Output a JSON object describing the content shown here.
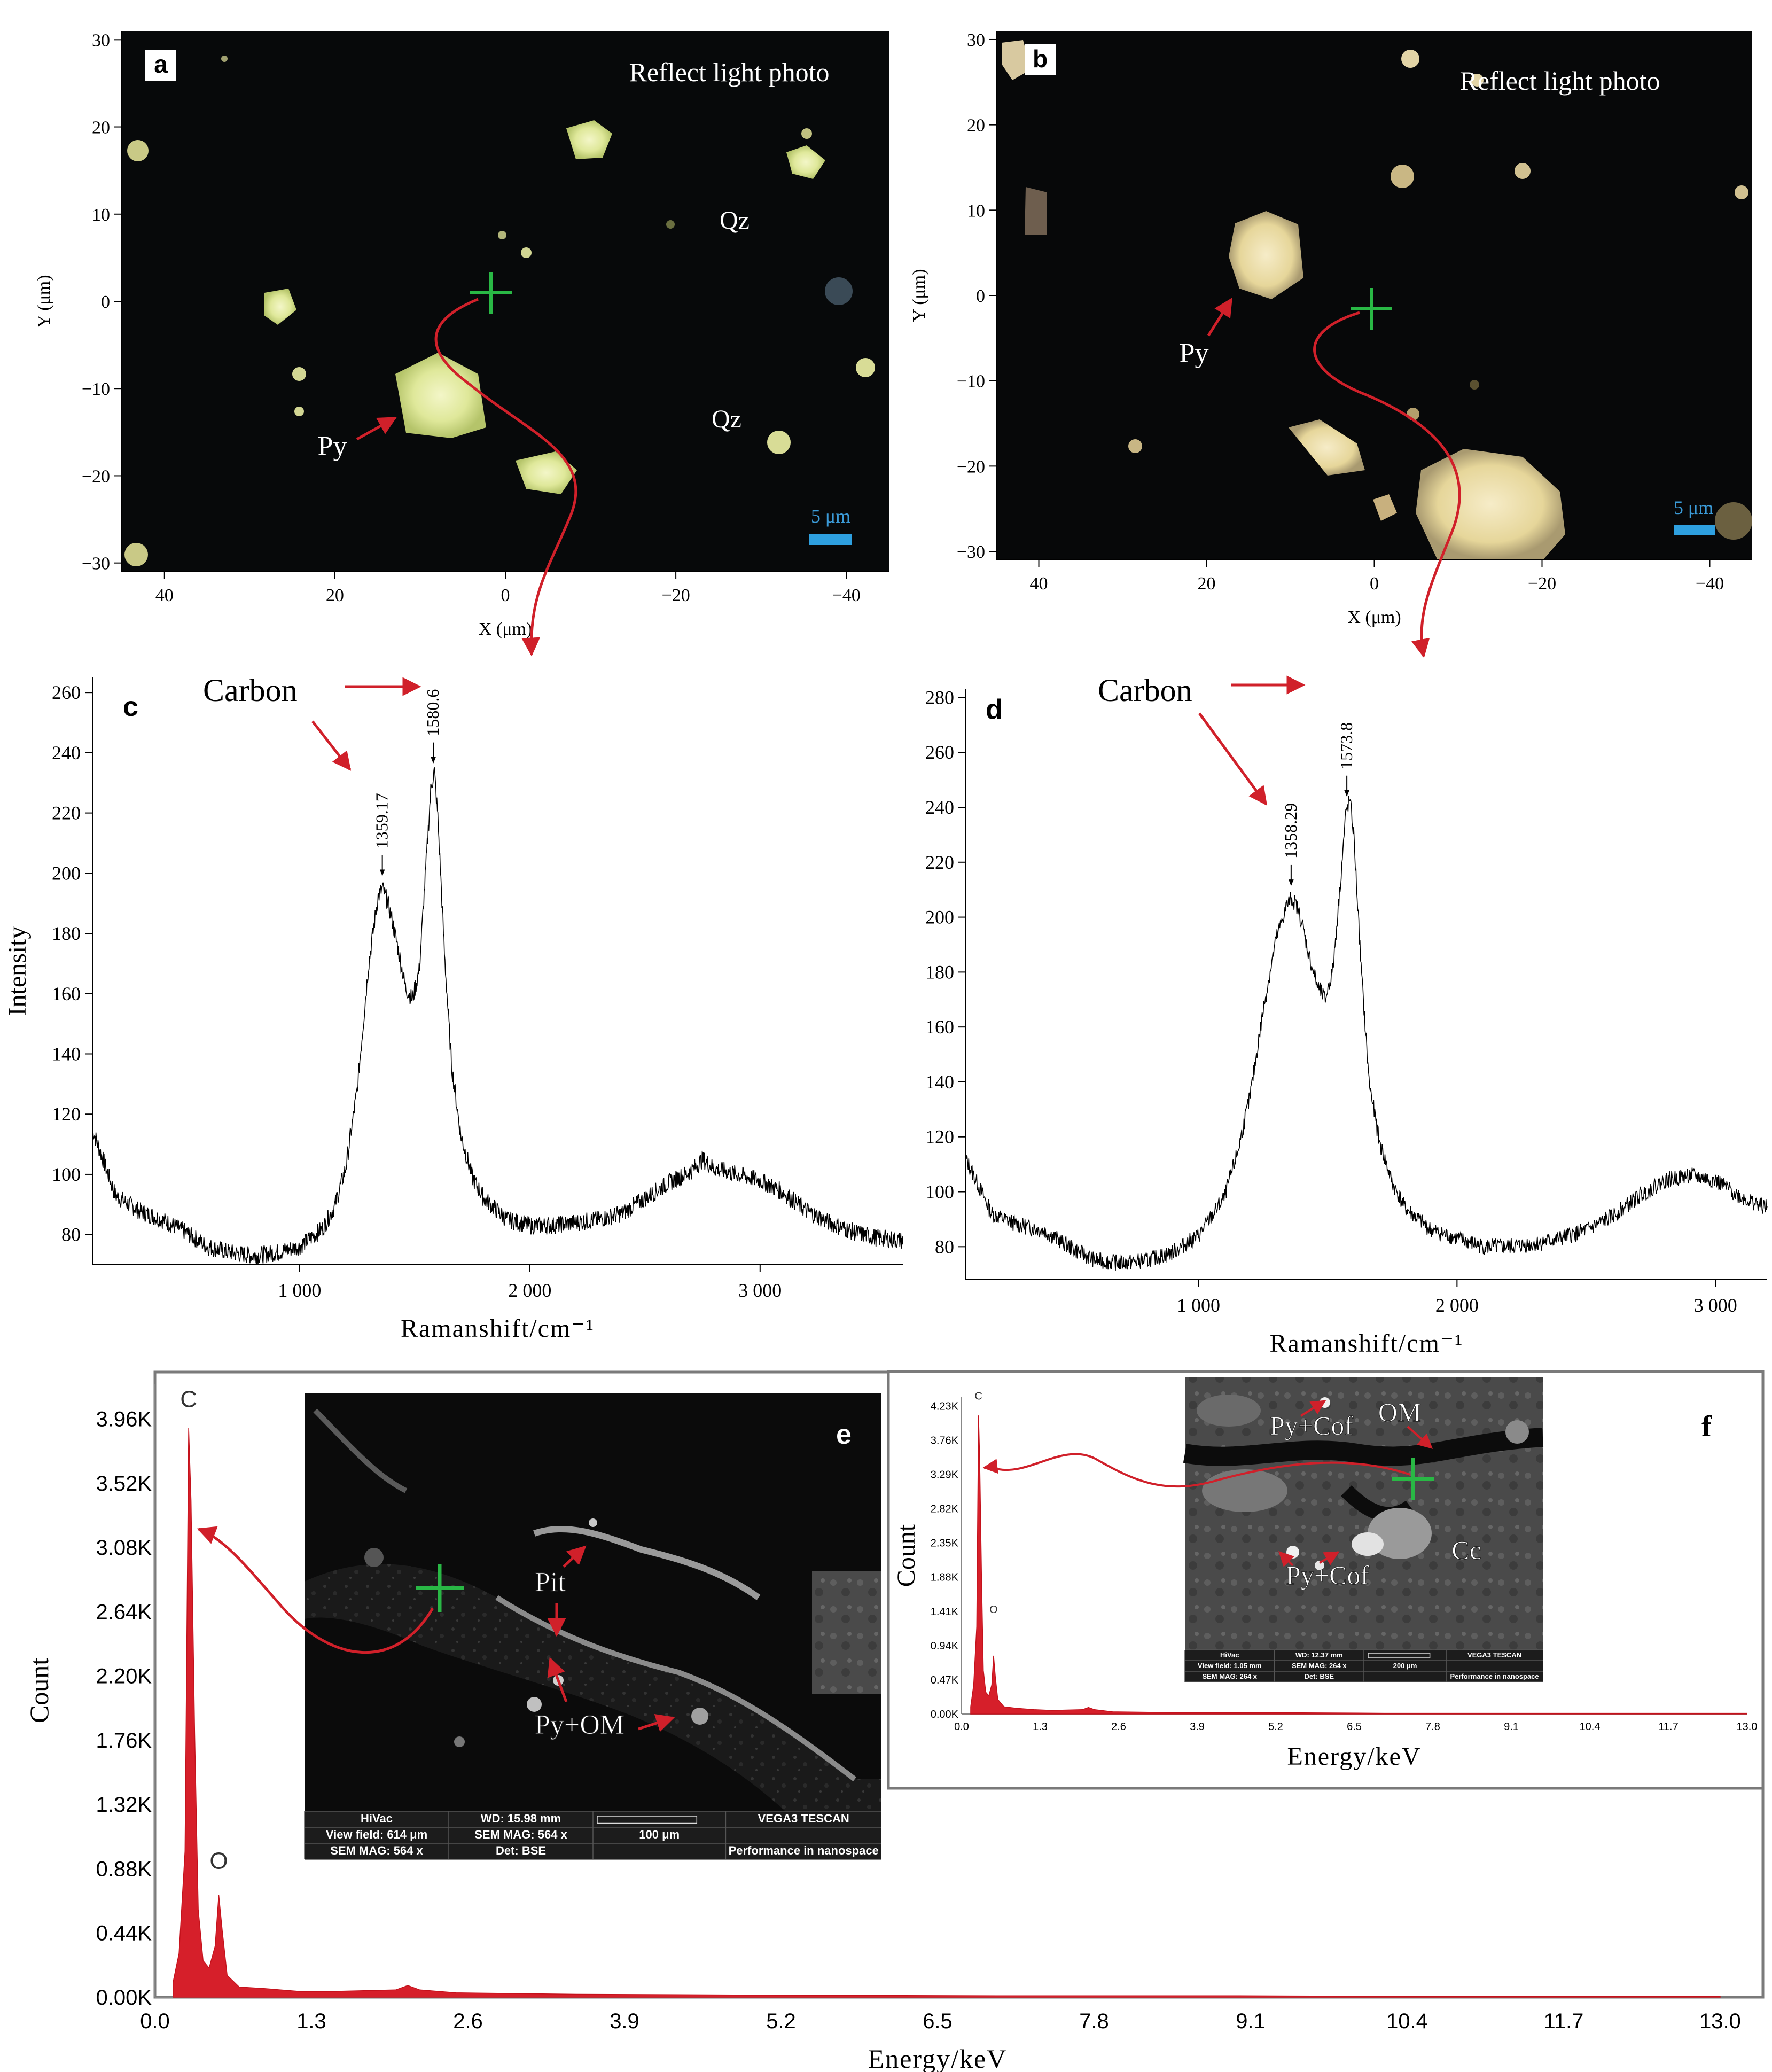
{
  "panels": {
    "a": {
      "letter": "a",
      "caption": "Reflect light photo",
      "labels": {
        "qz1": "Qz",
        "qz2": "Qz",
        "py": "Py"
      },
      "scale_bar": "5 μm",
      "xlabel": "X (μm)",
      "ylabel": "Y (μm)",
      "xticks": [
        40,
        20,
        0,
        -20,
        -40
      ],
      "yticks": [
        30,
        20,
        10,
        0,
        -10,
        -20,
        -30
      ],
      "xlim": [
        45,
        -45
      ],
      "ylim": [
        -31,
        31
      ]
    },
    "b": {
      "letter": "b",
      "caption": "Reflect light photo",
      "labels": {
        "py": "Py"
      },
      "scale_bar": "5 μm",
      "xlabel": "X (μm)",
      "ylabel": "Y (μm)",
      "xticks": [
        40,
        20,
        0,
        -20,
        -40
      ],
      "yticks": [
        30,
        20,
        10,
        0,
        -10,
        -20,
        -30
      ],
      "xlim": [
        45,
        -45
      ],
      "ylim": [
        -31,
        31
      ]
    },
    "e": {
      "letter": "e",
      "labels": {
        "pit": "Pit",
        "pyom": "Py+OM"
      },
      "sem_bar": {
        "r1": [
          "HiVac",
          "WD: 15.98 mm",
          "",
          "VEGA3 TESCAN"
        ],
        "r2": [
          "View field: 614 μm",
          "SEM MAG: 564 x",
          "100 μm",
          ""
        ],
        "r3": [
          "SEM MAG: 564 x",
          "Det: BSE",
          "",
          "Performance in nanospace"
        ]
      }
    },
    "f": {
      "letter": "f",
      "labels": {
        "pycof1": "Py+Cof",
        "om": "OM",
        "pycof2": "Py+Cof",
        "cc": "Cc"
      },
      "sem_bar": {
        "r1": [
          "HiVac",
          "WD: 12.37 mm",
          "",
          "VEGA3 TESCAN"
        ],
        "r2": [
          "View field: 1.05 mm",
          "SEM MAG: 264 x",
          "200 μm",
          ""
        ],
        "r3": [
          "SEM MAG: 264 x",
          "Det: BSE",
          "",
          "Performance in nanospace"
        ]
      }
    }
  },
  "chart_data": [
    {
      "id": "c",
      "type": "line",
      "letter": "c",
      "annotation": "Carbon",
      "xlabel": "Ramanshift/cm⁻¹",
      "ylabel": "Intensity",
      "xlim": [
        100,
        3620
      ],
      "ylim": [
        70,
        265
      ],
      "xticks": [
        1000,
        2000,
        3000
      ],
      "xtick_labels": [
        "1 000",
        "2 000",
        "3 000"
      ],
      "yticks": [
        80,
        100,
        120,
        140,
        160,
        180,
        200,
        220,
        240,
        260
      ],
      "peaks": [
        {
          "x": 1359.17,
          "label": "1359.17"
        },
        {
          "x": 1580.6,
          "label": "1580.6"
        }
      ],
      "x": [
        100,
        200,
        300,
        400,
        500,
        600,
        700,
        800,
        900,
        1000,
        1100,
        1150,
        1200,
        1250,
        1300,
        1340,
        1360,
        1380,
        1400,
        1430,
        1460,
        1490,
        1520,
        1550,
        1570,
        1585,
        1600,
        1630,
        1660,
        1700,
        1750,
        1800,
        1900,
        2000,
        2100,
        2200,
        2300,
        2400,
        2500,
        2600,
        2700,
        2750,
        2800,
        2900,
        3000,
        3100,
        3200,
        3300,
        3400,
        3500,
        3620
      ],
      "values": [
        115,
        93,
        88,
        85,
        81,
        76,
        74,
        73,
        74,
        76,
        82,
        89,
        102,
        128,
        170,
        192,
        195,
        191,
        185,
        174,
        162,
        158,
        168,
        204,
        228,
        234,
        219,
        172,
        136,
        113,
        99,
        92,
        85,
        83,
        83,
        84,
        85,
        87,
        92,
        97,
        101,
        105,
        102,
        100,
        98,
        94,
        88,
        84,
        81,
        79,
        78
      ]
    },
    {
      "id": "d",
      "type": "line",
      "letter": "d",
      "annotation": "Carbon",
      "xlabel": "Ramanshift/cm⁻¹",
      "ylabel": "",
      "xlim": [
        100,
        3200
      ],
      "ylim": [
        68,
        283
      ],
      "xticks": [
        1000,
        2000,
        3000
      ],
      "xtick_labels": [
        "1 000",
        "2 000",
        "3 000"
      ],
      "yticks": [
        80,
        100,
        120,
        140,
        160,
        180,
        200,
        220,
        240,
        260,
        280
      ],
      "peaks": [
        {
          "x": 1358.29,
          "label": "1358.29"
        },
        {
          "x": 1573.8,
          "label": "1573.8"
        }
      ],
      "x": [
        100,
        200,
        300,
        400,
        500,
        600,
        700,
        800,
        900,
        1000,
        1100,
        1150,
        1200,
        1250,
        1300,
        1340,
        1360,
        1380,
        1400,
        1430,
        1460,
        1490,
        1520,
        1550,
        1570,
        1585,
        1600,
        1630,
        1660,
        1700,
        1750,
        1800,
        1900,
        2000,
        2100,
        2200,
        2300,
        2400,
        2500,
        2600,
        2700,
        2800,
        2900,
        3000,
        3100,
        3200
      ],
      "values": [
        112,
        92,
        88,
        86,
        80,
        75,
        74,
        75,
        78,
        84,
        98,
        114,
        135,
        166,
        192,
        204,
        207,
        204,
        198,
        185,
        175,
        170,
        181,
        214,
        238,
        243,
        231,
        180,
        140,
        118,
        103,
        94,
        86,
        83,
        80,
        80,
        81,
        83,
        86,
        91,
        98,
        104,
        106,
        104,
        98,
        94
      ]
    },
    {
      "id": "e",
      "type": "bar",
      "xlabel": "Energy/keV",
      "ylabel": "Count",
      "xlim": [
        0,
        13.0
      ],
      "ylim": [
        0,
        4.2
      ],
      "xticks": [
        "0.0",
        "1.3",
        "2.6",
        "3.9",
        "5.2",
        "6.5",
        "7.8",
        "9.1",
        "10.4",
        "11.7",
        "13.0"
      ],
      "yticks": [
        "0.00K",
        "0.44K",
        "0.88K",
        "1.32K",
        "1.76K",
        "2.20K",
        "2.64K",
        "3.08K",
        "3.52K",
        "3.96K"
      ],
      "peak_labels": [
        {
          "x": 0.28,
          "y": 3.96,
          "label": "C"
        },
        {
          "x": 0.53,
          "y": 0.8,
          "label": "O"
        }
      ],
      "x": [
        0.15,
        0.2,
        0.25,
        0.28,
        0.3,
        0.33,
        0.36,
        0.4,
        0.45,
        0.5,
        0.53,
        0.56,
        0.6,
        0.7,
        0.9,
        1.2,
        1.5,
        2.0,
        2.1,
        2.2,
        2.5,
        3.5,
        5.0,
        7.0,
        9.0,
        11.0,
        13.0
      ],
      "values": [
        0.1,
        0.3,
        1.0,
        3.9,
        3.4,
        1.8,
        0.6,
        0.25,
        0.2,
        0.35,
        0.7,
        0.45,
        0.15,
        0.07,
        0.06,
        0.04,
        0.04,
        0.05,
        0.08,
        0.05,
        0.03,
        0.02,
        0.015,
        0.01,
        0.01,
        0.005,
        0.005
      ]
    },
    {
      "id": "f",
      "type": "bar",
      "xlabel": "Energy/keV",
      "ylabel": "Count",
      "xlim": [
        0,
        13.0
      ],
      "ylim": [
        0,
        4.35
      ],
      "xticks": [
        "0.0",
        "1.3",
        "2.6",
        "3.9",
        "5.2",
        "6.5",
        "7.8",
        "9.1",
        "10.4",
        "11.7",
        "13.0"
      ],
      "yticks": [
        "0.00K",
        "0.47K",
        "0.94K",
        "1.41K",
        "1.88K",
        "2.35K",
        "2.82K",
        "3.29K",
        "3.76K",
        "4.23K"
      ],
      "peak_labels": [
        {
          "x": 0.28,
          "y": 4.23,
          "label": "C"
        },
        {
          "x": 0.53,
          "y": 1.3,
          "label": "O"
        }
      ],
      "x": [
        0.15,
        0.2,
        0.25,
        0.28,
        0.3,
        0.33,
        0.36,
        0.4,
        0.45,
        0.5,
        0.53,
        0.56,
        0.6,
        0.7,
        0.9,
        1.2,
        1.5,
        2.0,
        2.1,
        2.2,
        2.5,
        3.5,
        5.0,
        7.0,
        9.0,
        11.0,
        13.0
      ],
      "values": [
        0.1,
        0.4,
        1.2,
        4.1,
        3.5,
        1.9,
        0.6,
        0.3,
        0.25,
        0.4,
        0.8,
        0.5,
        0.2,
        0.1,
        0.08,
        0.06,
        0.05,
        0.06,
        0.09,
        0.06,
        0.03,
        0.02,
        0.02,
        0.01,
        0.01,
        0.01,
        0.01
      ]
    }
  ]
}
